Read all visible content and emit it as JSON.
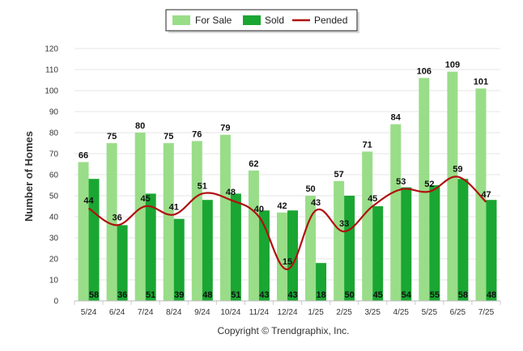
{
  "chart_data": {
    "type": "bar",
    "categories": [
      "5/24",
      "6/24",
      "7/24",
      "8/24",
      "9/24",
      "10/24",
      "11/24",
      "12/24",
      "1/25",
      "2/25",
      "3/25",
      "4/25",
      "5/25",
      "6/25",
      "7/25"
    ],
    "series": [
      {
        "name": "For Sale",
        "type": "bar",
        "color": "#99dd88",
        "values": [
          66,
          75,
          80,
          75,
          76,
          79,
          62,
          42,
          50,
          57,
          71,
          84,
          106,
          109,
          101
        ]
      },
      {
        "name": "Sold",
        "type": "bar",
        "color": "#1aa632",
        "values": [
          58,
          36,
          51,
          39,
          48,
          51,
          43,
          43,
          18,
          50,
          45,
          54,
          55,
          58,
          48
        ]
      },
      {
        "name": "Pended",
        "type": "line",
        "color": "#b01010",
        "values": [
          44,
          36,
          45,
          41,
          51,
          48,
          40,
          15,
          43,
          33,
          45,
          53,
          52,
          59,
          47
        ]
      }
    ],
    "ylabel": "Number of Homes",
    "ylim": [
      0,
      120
    ],
    "yticks": [
      0,
      10,
      20,
      30,
      40,
      50,
      60,
      70,
      80,
      90,
      100,
      110,
      120
    ],
    "legend_position": "top-center",
    "grid": true,
    "credit": "Copyright © Trendgraphix, Inc."
  }
}
